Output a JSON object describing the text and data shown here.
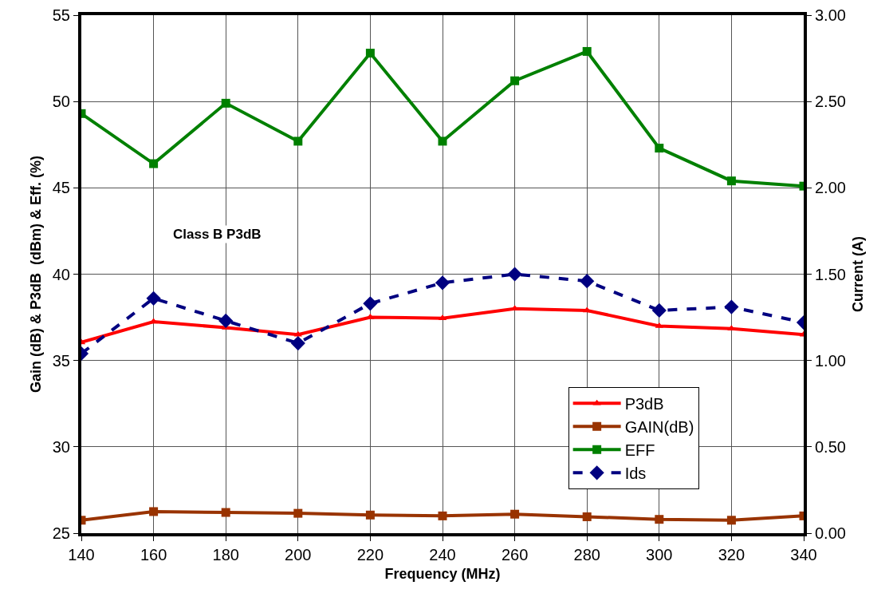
{
  "chart_data": {
    "type": "line",
    "xlabel": "Frequency (MHz)",
    "ylabel": "Gain (dB) & P3dB  (dBm) & Eff. (%)",
    "y2label": "Current (A)",
    "x": [
      140,
      160,
      180,
      200,
      220,
      240,
      260,
      280,
      300,
      320,
      340
    ],
    "xlim": [
      140,
      340
    ],
    "xticks": [
      140,
      160,
      180,
      200,
      220,
      240,
      260,
      280,
      300,
      320,
      340
    ],
    "ylim": [
      25,
      55
    ],
    "yticks": [
      25,
      30,
      35,
      40,
      45,
      50,
      55
    ],
    "y2lim": [
      0,
      3
    ],
    "y2ticks": [
      {
        "value": 0,
        "label": "0.00"
      },
      {
        "value": 0.5,
        "label": "0.50"
      },
      {
        "value": 1,
        "label": "1.00"
      },
      {
        "value": 1.5,
        "label": "1.50"
      },
      {
        "value": 2,
        "label": "2.00"
      },
      {
        "value": 2.5,
        "label": "2.50"
      },
      {
        "value": 3,
        "label": "3.00"
      }
    ],
    "grid": true,
    "legend": "bottom right",
    "annotations": [
      "Class B P3dB"
    ],
    "series": [
      {
        "name": "P3dB",
        "color": "#ff0000",
        "marker": "triangle",
        "line_style": "solid",
        "values": [
          36.05,
          37.25,
          36.9,
          36.5,
          37.5,
          37.45,
          38.0,
          37.9,
          37.0,
          36.85,
          36.5
        ]
      },
      {
        "name": "GAIN(dB)",
        "color": "#993300",
        "marker": "square",
        "line_style": "solid",
        "values": [
          25.75,
          26.25,
          26.2,
          26.15,
          26.05,
          26.0,
          26.1,
          25.95,
          25.8,
          25.75,
          26.0
        ]
      },
      {
        "name": "EFF",
        "color": "#008000",
        "marker": "square",
        "line_style": "solid",
        "values": [
          49.3,
          46.4,
          49.9,
          47.7,
          52.8,
          47.7,
          51.2,
          52.9,
          47.3,
          45.4,
          45.1
        ]
      },
      {
        "name": "Ids",
        "color": "#000080",
        "marker": "diamond",
        "line_style": "dashed",
        "axis": "y2",
        "values": [
          1.04,
          1.36,
          1.23,
          1.1,
          1.33,
          1.45,
          1.5,
          1.46,
          1.29,
          1.31,
          1.22
        ]
      }
    ]
  }
}
